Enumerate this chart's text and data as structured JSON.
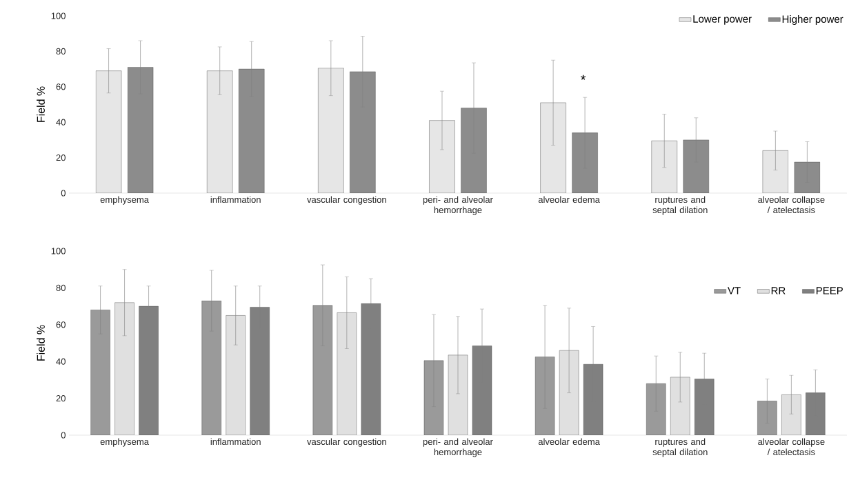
{
  "chart_data": [
    {
      "type": "bar",
      "ylabel": "Field %",
      "categories": [
        "emphysema",
        "inflammation",
        "vascular congestion",
        "peri- and alveolar hemorrhage",
        "alveolar edema",
        "ruptures and septal dilation",
        "alveolar collapse / atelectasis"
      ],
      "series": [
        {
          "name": "Lower power",
          "color": "#e6e6e6",
          "values": [
            69,
            69,
            70.5,
            41,
            51,
            29.5,
            24
          ],
          "errors": [
            12.5,
            13.5,
            15.5,
            16.5,
            24,
            15,
            11
          ]
        },
        {
          "name": "Higher power",
          "color": "#8c8c8c",
          "values": [
            71,
            70,
            68.5,
            48,
            34,
            30,
            17.5
          ],
          "errors": [
            15,
            15.5,
            20,
            25.5,
            20,
            12.5,
            11.5
          ]
        }
      ],
      "ylim": [
        0,
        100
      ],
      "yticks": [
        0,
        20,
        40,
        60,
        80,
        100
      ],
      "legend": "top right",
      "annotations": [
        "*"
      ]
    },
    {
      "type": "bar",
      "ylabel": "Field %",
      "categories": [
        "emphysema",
        "inflammation",
        "vascular congestion",
        "peri- and alveolar hemorrhage",
        "alveolar edema",
        "ruptures and septal dilation",
        "alveolar collapse / atelectasis"
      ],
      "series": [
        {
          "name": "VT",
          "color": "#9a9a9a",
          "values": [
            68,
            73,
            70.5,
            40.5,
            42.5,
            28,
            18.5
          ],
          "errors": [
            13,
            16.5,
            22,
            25,
            28,
            15,
            12
          ]
        },
        {
          "name": "RR",
          "color": "#e0e0e0",
          "values": [
            72,
            65,
            66.5,
            43.5,
            46,
            31.5,
            22
          ],
          "errors": [
            18,
            16,
            19.5,
            21,
            23,
            13.5,
            10.5
          ]
        },
        {
          "name": "PEEP",
          "color": "#808080",
          "values": [
            70,
            69.5,
            71.5,
            48.5,
            38.5,
            30.5,
            23
          ],
          "errors": [
            11,
            11.5,
            13.5,
            20,
            20.5,
            14,
            12.5
          ]
        }
      ],
      "ylim": [
        0,
        100
      ],
      "yticks": [
        0,
        20,
        40,
        60,
        80,
        100
      ],
      "legend": "right"
    }
  ]
}
